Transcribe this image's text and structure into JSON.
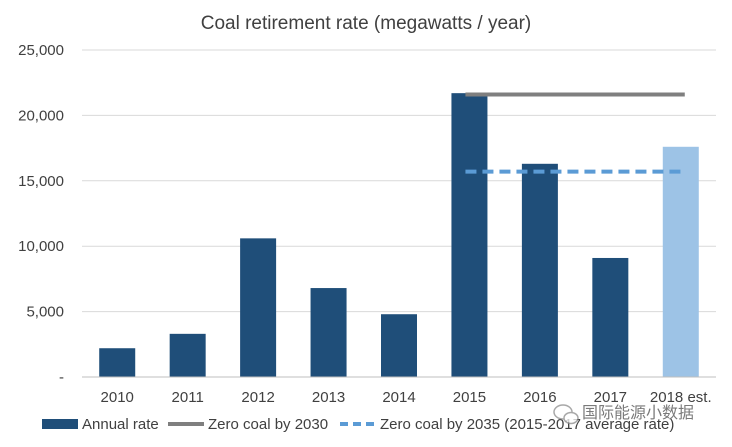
{
  "chart_data": {
    "type": "bar",
    "title": "Coal retirement rate (megawatts  / year)",
    "categories": [
      "2010",
      "2011",
      "2012",
      "2013",
      "2014",
      "2015",
      "2016",
      "2017",
      "2018 est."
    ],
    "series": [
      {
        "name": "Annual rate",
        "values": [
          2200,
          3300,
          10600,
          6800,
          4800,
          21700,
          16300,
          9100,
          17600
        ],
        "color": "#1f4e79",
        "estimate_color": "#9dc3e6"
      }
    ],
    "reference_lines": [
      {
        "name": "Zero coal by 2030",
        "value": 21600,
        "from": "2015",
        "to": "2018 est.",
        "color": "#7f7f7f",
        "style": "solid"
      },
      {
        "name": "Zero coal by 2035 (2015-2017 average rate)",
        "value": 15700,
        "from": "2015",
        "to": "2018 est.",
        "color": "#5b9bd5",
        "style": "dashed"
      }
    ],
    "ylim": [
      0,
      25000
    ],
    "yticks": [
      "-",
      "5,000",
      "10,000",
      "15,000",
      "20,000",
      "25,000"
    ],
    "grid": true,
    "legend_position": "bottom"
  },
  "watermark": {
    "text": "国际能源小数据",
    "icon": "wechat-icon"
  }
}
